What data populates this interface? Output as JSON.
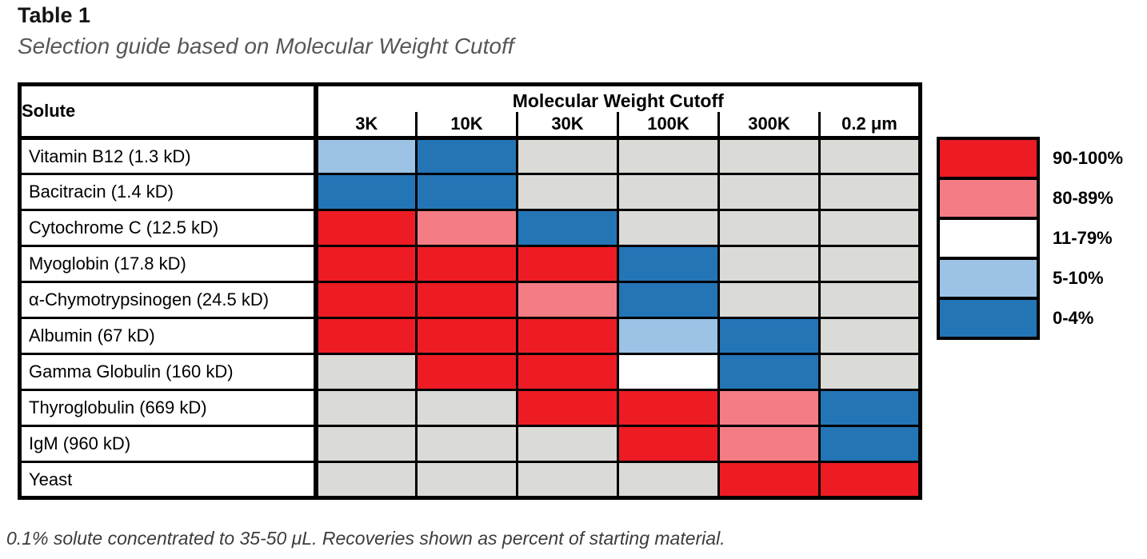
{
  "page": {
    "title": "Table 1",
    "subtitle": "Selection guide based on Molecular Weight Cutoff",
    "footnote": "0.1% solute concentrated to 35-50 μL. Recoveries shown as percent of starting material."
  },
  "table": {
    "solute_header": "Solute",
    "group_header": "Molecular Weight Cutoff",
    "columns": [
      "3K",
      "10K",
      "30K",
      "100K",
      "300K",
      "0.2 μm"
    ],
    "rows": [
      {
        "label": "Vitamin B12 (1.3 kD)",
        "cells": [
          "lightblue",
          "darkblue",
          "gray",
          "gray",
          "gray",
          "gray"
        ]
      },
      {
        "label": "Bacitracin (1.4 kD)",
        "cells": [
          "darkblue",
          "darkblue",
          "gray",
          "gray",
          "gray",
          "gray"
        ]
      },
      {
        "label": "Cytochrome C (12.5 kD)",
        "cells": [
          "red",
          "pink",
          "darkblue",
          "gray",
          "gray",
          "gray"
        ]
      },
      {
        "label": "Myoglobin (17.8 kD)",
        "cells": [
          "red",
          "red",
          "red",
          "darkblue",
          "gray",
          "gray"
        ]
      },
      {
        "label": "α-Chymotrypsinogen (24.5 kD)",
        "cells": [
          "red",
          "red",
          "pink",
          "darkblue",
          "gray",
          "gray"
        ]
      },
      {
        "label": "Albumin (67 kD)",
        "cells": [
          "red",
          "red",
          "red",
          "lightblue",
          "darkblue",
          "gray"
        ]
      },
      {
        "label": "Gamma Globulin (160 kD)",
        "cells": [
          "gray",
          "red",
          "red",
          "white",
          "darkblue",
          "gray"
        ]
      },
      {
        "label": "Thyroglobulin (669 kD)",
        "cells": [
          "gray",
          "gray",
          "red",
          "red",
          "pink",
          "darkblue"
        ]
      },
      {
        "label": "IgM (960 kD)",
        "cells": [
          "gray",
          "gray",
          "gray",
          "red",
          "pink",
          "darkblue"
        ]
      },
      {
        "label": "Yeast",
        "cells": [
          "gray",
          "gray",
          "gray",
          "gray",
          "red",
          "red"
        ]
      }
    ]
  },
  "legend": {
    "items": [
      {
        "label": "90-100%",
        "color": "red"
      },
      {
        "label": "80-89%",
        "color": "pink"
      },
      {
        "label": "11-79%",
        "color": "white"
      },
      {
        "label": "5-10%",
        "color": "lightblue"
      },
      {
        "label": "0-4%",
        "color": "darkblue"
      }
    ]
  },
  "colors": {
    "red": "#ED1C24",
    "pink": "#F47D85",
    "white": "#FFFFFF",
    "lightblue": "#9CC3E6",
    "darkblue": "#2475B6",
    "gray": "#DADAD7"
  },
  "chart_data": {
    "type": "heatmap",
    "title": "Selection guide based on Molecular Weight Cutoff",
    "x_label": "Molecular Weight Cutoff",
    "y_label": "Solute",
    "x_categories": [
      "3K",
      "10K",
      "30K",
      "100K",
      "300K",
      "0.2 μm"
    ],
    "y_categories": [
      "Vitamin B12 (1.3 kD)",
      "Bacitracin (1.4 kD)",
      "Cytochrome C (12.5 kD)",
      "Myoglobin (17.8 kD)",
      "α-Chymotrypsinogen (24.5 kD)",
      "Albumin (67 kD)",
      "Gamma Globulin (160 kD)",
      "Thyroglobulin (669 kD)",
      "IgM (960 kD)",
      "Yeast"
    ],
    "values_recovery_percent": [
      [
        "5-10%",
        "0-4%",
        null,
        null,
        null,
        null
      ],
      [
        "0-4%",
        "0-4%",
        null,
        null,
        null,
        null
      ],
      [
        "90-100%",
        "80-89%",
        "0-4%",
        null,
        null,
        null
      ],
      [
        "90-100%",
        "90-100%",
        "90-100%",
        "0-4%",
        null,
        null
      ],
      [
        "90-100%",
        "90-100%",
        "80-89%",
        "0-4%",
        null,
        null
      ],
      [
        "90-100%",
        "90-100%",
        "90-100%",
        "5-10%",
        "0-4%",
        null
      ],
      [
        null,
        "90-100%",
        "90-100%",
        "11-79%",
        "0-4%",
        null
      ],
      [
        null,
        null,
        "90-100%",
        "90-100%",
        "80-89%",
        "0-4%"
      ],
      [
        null,
        null,
        null,
        "90-100%",
        "80-89%",
        "0-4%"
      ],
      [
        null,
        null,
        null,
        null,
        "90-100%",
        "90-100%"
      ]
    ],
    "legend_position": "right",
    "legend": [
      {
        "label": "90-100%",
        "color": "#ED1C24"
      },
      {
        "label": "80-89%",
        "color": "#F47D85"
      },
      {
        "label": "11-79%",
        "color": "#FFFFFF"
      },
      {
        "label": "5-10%",
        "color": "#9CC3E6"
      },
      {
        "label": "0-4%",
        "color": "#2475B6"
      }
    ],
    "note": "0.1% solute concentrated to 35-50 μL. Recoveries shown as percent of starting material."
  }
}
